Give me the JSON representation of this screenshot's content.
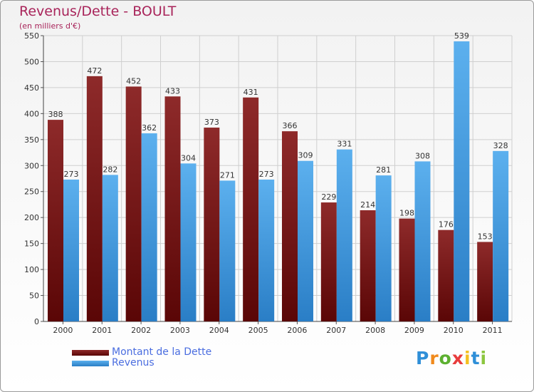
{
  "chart_data": {
    "type": "bar",
    "title": "Revenus/Dette - BOULT",
    "subtitle": "(en milliers d'€)",
    "categories": [
      "2000",
      "2001",
      "2002",
      "2003",
      "2004",
      "2005",
      "2006",
      "2007",
      "2008",
      "2009",
      "2010",
      "2011"
    ],
    "series": [
      {
        "name": "Montant de la Dette",
        "color": "#7a1c1c",
        "values": [
          388,
          472,
          452,
          433,
          373,
          431,
          366,
          229,
          214,
          198,
          176,
          153
        ]
      },
      {
        "name": "Revenus",
        "color": "#4aa3e8",
        "values": [
          273,
          282,
          362,
          304,
          271,
          273,
          309,
          331,
          281,
          308,
          539,
          328
        ]
      }
    ],
    "ylim": [
      0,
      550
    ],
    "yticks": [
      0,
      50,
      100,
      150,
      200,
      250,
      300,
      350,
      400,
      450,
      500,
      550
    ],
    "grid": true,
    "legend": "bottom-left"
  },
  "logo": {
    "letters": [
      "P",
      "r",
      "o",
      "x",
      "i",
      "t",
      "i"
    ],
    "colors": [
      "#2f8fd8",
      "#f08a1c",
      "#5cb030",
      "#e83c3c",
      "#f4c020",
      "#2f8fd8",
      "#8cc63f"
    ]
  }
}
